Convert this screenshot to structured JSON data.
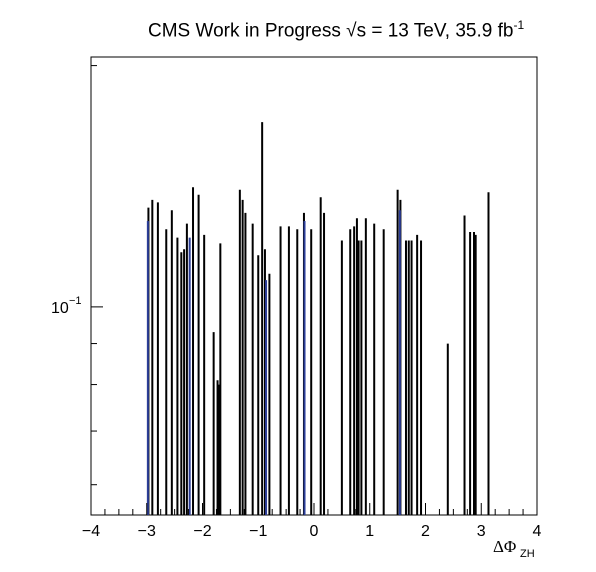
{
  "chart_data": {
    "type": "bar",
    "title": {
      "experiment": "CMS Work in Progress",
      "energy_prefix": "√s = 13 TeV, 35.9 fb",
      "energy_exponent": "-1"
    },
    "xlabel": "ΔΦ",
    "xlabel_sub": "ZH",
    "ylabel": "",
    "log_y": true,
    "xlim": [
      -4,
      4
    ],
    "ylim": [
      0.055,
      0.205
    ],
    "x_ticks": [
      -4,
      -3,
      -2,
      -1,
      0,
      1,
      2,
      3,
      4
    ],
    "y_tick_label": {
      "base": "10",
      "exponent": "−1",
      "value": 0.1
    },
    "grid": false,
    "series": [
      {
        "color": "#000000",
        "x": [
          -2.97,
          -2.9,
          -2.8,
          -2.65,
          -2.55,
          -2.45,
          -2.38,
          -2.33,
          -2.28,
          -2.17,
          -2.07,
          -1.97,
          -1.8,
          -1.73,
          -1.7,
          -1.68,
          -1.33,
          -1.28,
          -1.23,
          -1.1,
          -1.0,
          -0.93,
          -0.88,
          -0.8,
          -0.6,
          -0.45,
          -0.3,
          -0.18,
          -0.05,
          0.12,
          0.18,
          0.5,
          0.65,
          0.72,
          0.77,
          0.8,
          0.85,
          0.93,
          1.08,
          1.25,
          1.5,
          1.55,
          1.65,
          1.7,
          1.75,
          1.85,
          1.92,
          2.4,
          2.7,
          2.8,
          2.87,
          2.9,
          3.13
        ],
        "values": [
          0.133,
          0.136,
          0.135,
          0.125,
          0.132,
          0.122,
          0.117,
          0.118,
          0.127,
          0.141,
          0.138,
          0.123,
          0.093,
          0.081,
          0.08,
          0.12,
          0.14,
          0.136,
          0.131,
          0.127,
          0.116,
          0.17,
          0.118,
          0.11,
          0.126,
          0.126,
          0.125,
          0.131,
          0.125,
          0.137,
          0.131,
          0.121,
          0.125,
          0.126,
          0.129,
          0.121,
          0.121,
          0.129,
          0.127,
          0.125,
          0.14,
          0.136,
          0.121,
          0.121,
          0.121,
          0.123,
          0.121,
          0.09,
          0.13,
          0.124,
          0.124,
          0.123,
          0.139
        ]
      },
      {
        "color": "#2c3e99",
        "x": [
          -2.98,
          -2.23,
          -0.86,
          -0.17,
          1.54
        ],
        "values": [
          0.128,
          0.122,
          0.108,
          0.128,
          0.132
        ]
      }
    ]
  }
}
